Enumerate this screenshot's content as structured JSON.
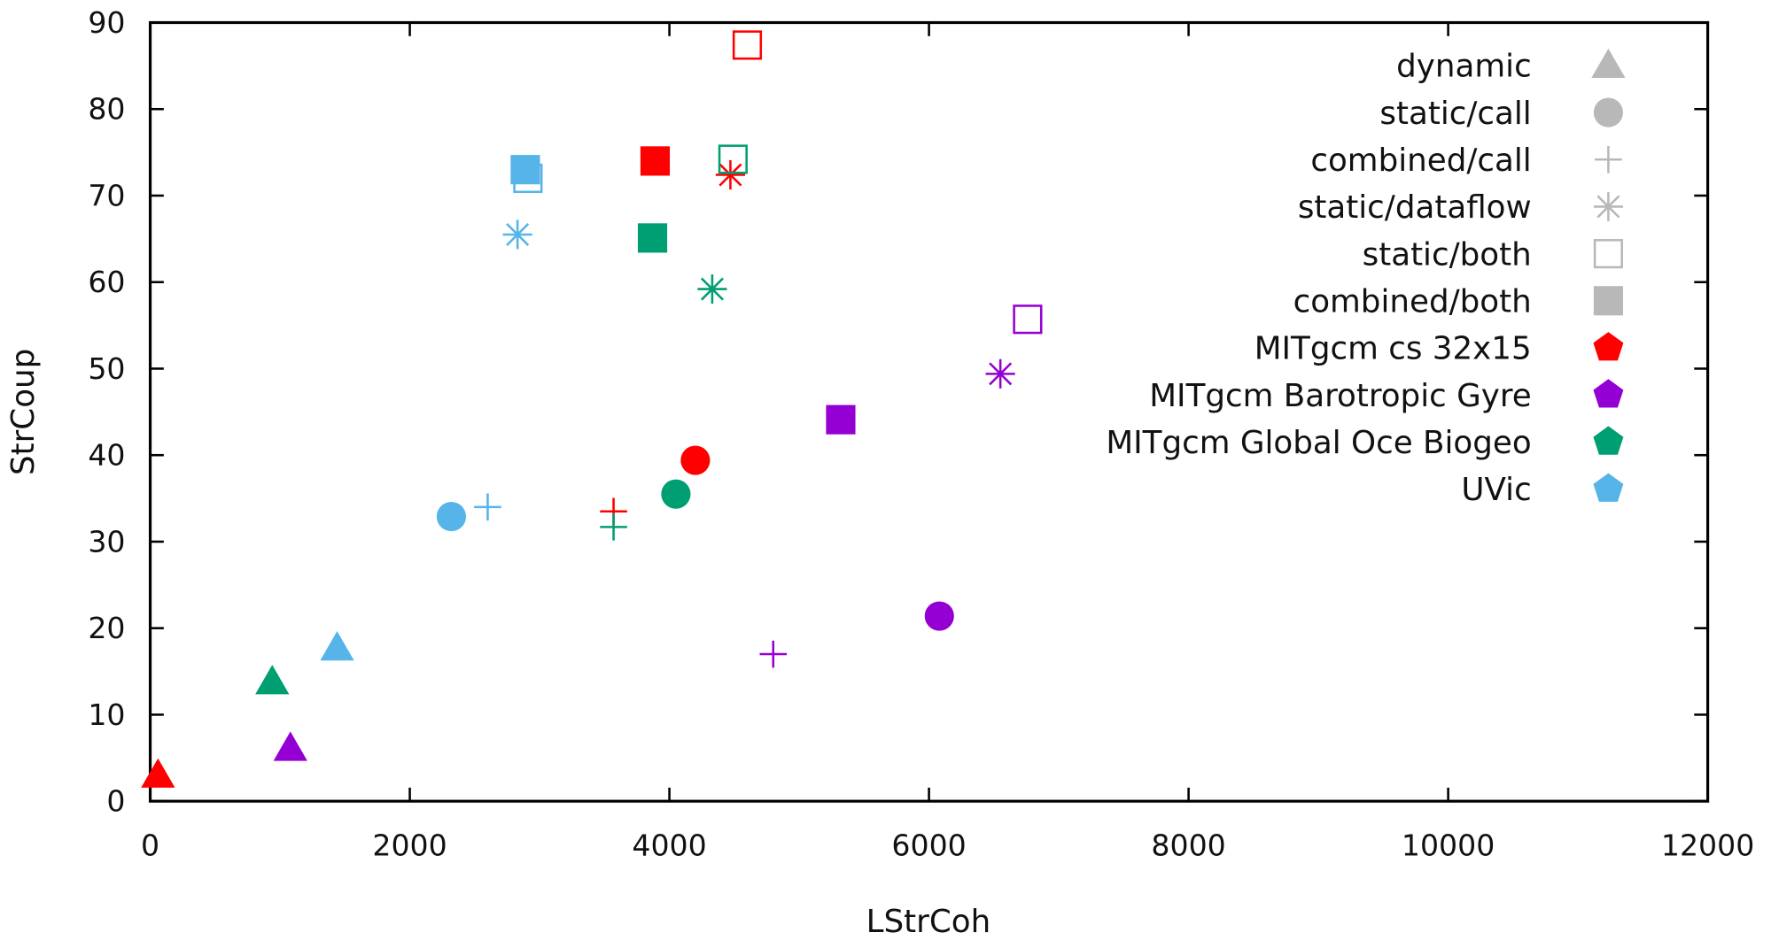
{
  "chart_data": {
    "type": "scatter",
    "xlabel": "LStrCoh",
    "ylabel": "StrCoup",
    "xlim": [
      0,
      12000
    ],
    "ylim": [
      0,
      90
    ],
    "xticks": [
      "0",
      "2000",
      "4000",
      "6000",
      "8000",
      "10000",
      "12000"
    ],
    "yticks": [
      "0",
      "10",
      "20",
      "30",
      "40",
      "50",
      "60",
      "70",
      "80",
      "90"
    ],
    "grid": false,
    "legend_position": "top-right",
    "methods": [
      {
        "name": "dynamic",
        "marker": "triangle"
      },
      {
        "name": "static/call",
        "marker": "circle"
      },
      {
        "name": "combined/call",
        "marker": "plus"
      },
      {
        "name": "static/dataflow",
        "marker": "asterisk"
      },
      {
        "name": "static/both",
        "marker": "open-square"
      },
      {
        "name": "combined/both",
        "marker": "filled-square"
      }
    ],
    "legend_marker_color": "#b8b8b8",
    "series": [
      {
        "name": "MITgcm cs 32x15",
        "color": "#ff0000",
        "points": {
          "dynamic": [
            60,
            3.0
          ],
          "static/call": [
            4200,
            39.4
          ],
          "combined/call": [
            3570,
            33.5
          ],
          "static/dataflow": [
            4470,
            72.4
          ],
          "static/both": [
            4600,
            87.4
          ],
          "combined/both": [
            3890,
            74.0
          ]
        }
      },
      {
        "name": "MITgcm Barotropic Gyre",
        "color": "#9400d3",
        "points": {
          "dynamic": [
            1080,
            6.1
          ],
          "static/call": [
            6080,
            21.4
          ],
          "combined/call": [
            4800,
            17.0
          ],
          "static/dataflow": [
            6550,
            49.4
          ],
          "static/both": [
            6760,
            55.7
          ],
          "combined/both": [
            5320,
            44.1
          ]
        }
      },
      {
        "name": "MITgcm Global Oce Biogeo",
        "color": "#009e73",
        "points": {
          "dynamic": [
            940,
            13.8
          ],
          "static/call": [
            4050,
            35.5
          ],
          "combined/call": [
            3570,
            31.7
          ],
          "static/dataflow": [
            4330,
            59.2
          ],
          "static/both": [
            4490,
            74.2
          ],
          "combined/both": [
            3870,
            65.1
          ]
        }
      },
      {
        "name": "UVic",
        "color": "#56b4e9",
        "points": {
          "dynamic": [
            1440,
            17.7
          ],
          "static/call": [
            2320,
            32.9
          ],
          "combined/call": [
            2600,
            34.0
          ],
          "static/dataflow": [
            2830,
            65.5
          ],
          "static/both": [
            2910,
            72.0
          ],
          "combined/both": [
            2890,
            73.0
          ]
        }
      }
    ]
  }
}
